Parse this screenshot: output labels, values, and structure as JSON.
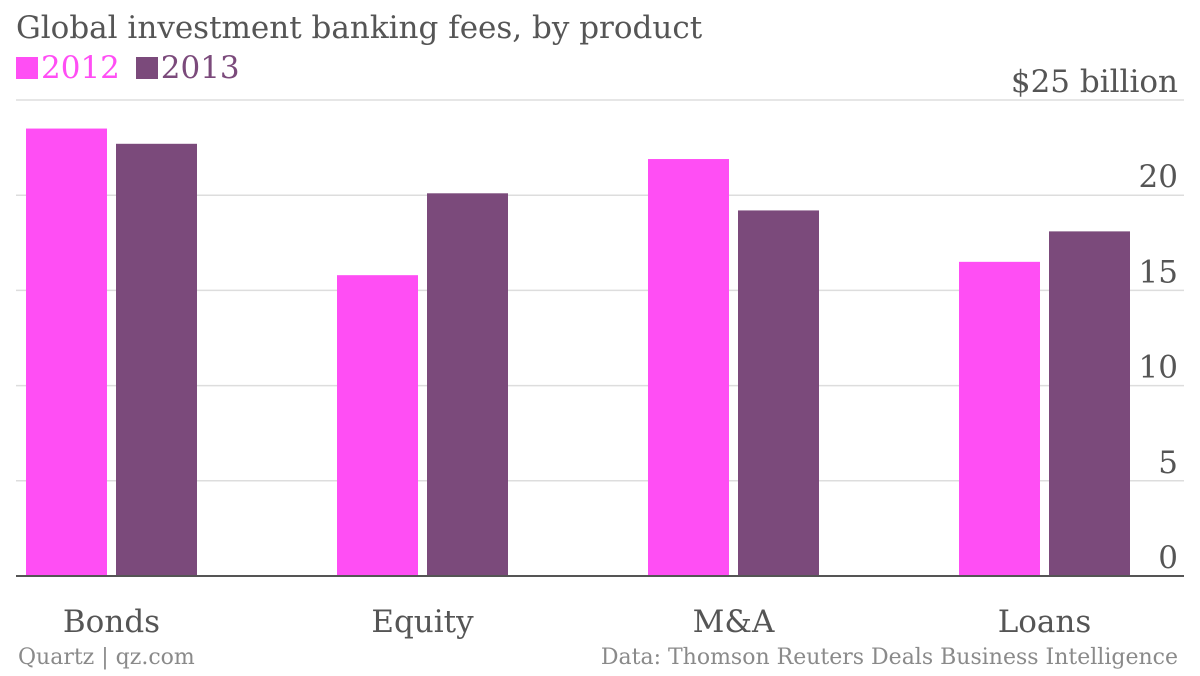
{
  "title": "Global investment banking fees, by product",
  "credit": "Quartz | qz.com",
  "source": "Data: Thomson Reuters Deals Business Intelligence",
  "colors": {
    "s2012": "#ff4ef4",
    "s2013": "#7b4a7b",
    "grid": "#dddddd",
    "axis": "#555555",
    "text": "#555555"
  },
  "chart_data": {
    "type": "bar",
    "title": "Global investment banking fees, by product",
    "categories": [
      "Bonds",
      "Equity",
      "M&A",
      "Loans"
    ],
    "series": [
      {
        "name": "2012",
        "color": "#ff4ef4",
        "values": [
          23.5,
          15.8,
          21.9,
          16.5
        ]
      },
      {
        "name": "2013",
        "color": "#7b4a7b",
        "values": [
          22.7,
          20.1,
          19.2,
          18.1
        ]
      }
    ],
    "ylim": [
      0,
      25
    ],
    "yticks": [
      "0",
      "5",
      "10",
      "15",
      "20",
      "$25 billion"
    ],
    "ytick_values": [
      0,
      5,
      10,
      15,
      20,
      25
    ],
    "y_axis_side": "right",
    "grid": true,
    "legend": "top-left"
  }
}
